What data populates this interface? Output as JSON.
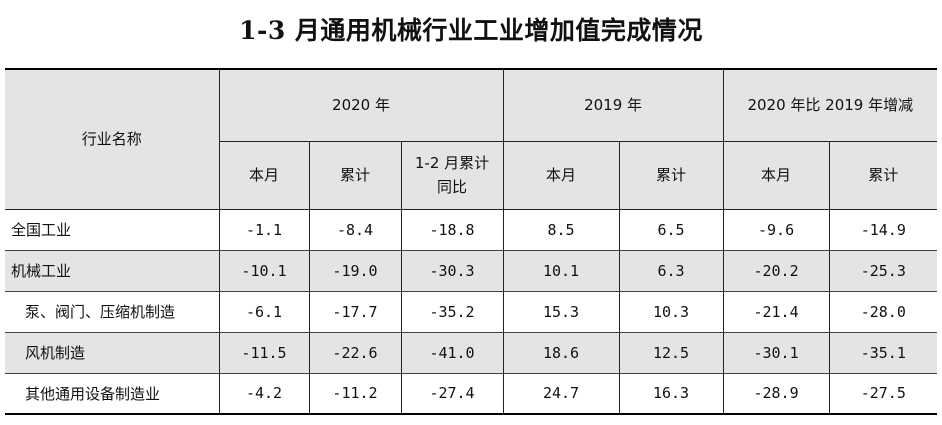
{
  "title": "1-3 月通用机械行业工业增加值完成情况",
  "header": {
    "industry_name": "行业名称",
    "group_2020": "2020 年",
    "group_2019": "2019 年",
    "group_change": "2020 年比 2019 年增减",
    "sub_2020": [
      "本月",
      "累计",
      "1-2 月累计同比"
    ],
    "sub_2019": [
      "本月",
      "累计"
    ],
    "sub_change": [
      "本月",
      "累计"
    ]
  },
  "rows": [
    {
      "name": "全国工业",
      "values": [
        "-1.1",
        "-8.4",
        "-18.8",
        "8.5",
        "6.5",
        "-9.6",
        "-14.9"
      ]
    },
    {
      "name": "机械工业",
      "values": [
        "-10.1",
        "-19.0",
        "-30.3",
        "10.1",
        "6.3",
        "-20.2",
        "-25.3"
      ]
    },
    {
      "name": "泵、阀门、压缩机制造",
      "values": [
        "-6.1",
        "-17.7",
        "-35.2",
        "15.3",
        "10.3",
        "-21.4",
        "-28.0"
      ]
    },
    {
      "name": "风机制造",
      "values": [
        "-11.5",
        "-22.6",
        "-41.0",
        "18.6",
        "12.5",
        "-30.1",
        "-35.1"
      ]
    },
    {
      "name": "其他通用设备制造业",
      "values": [
        "-4.2",
        "-11.2",
        "-27.4",
        "24.7",
        "16.3",
        "-28.9",
        "-27.5"
      ]
    }
  ]
}
